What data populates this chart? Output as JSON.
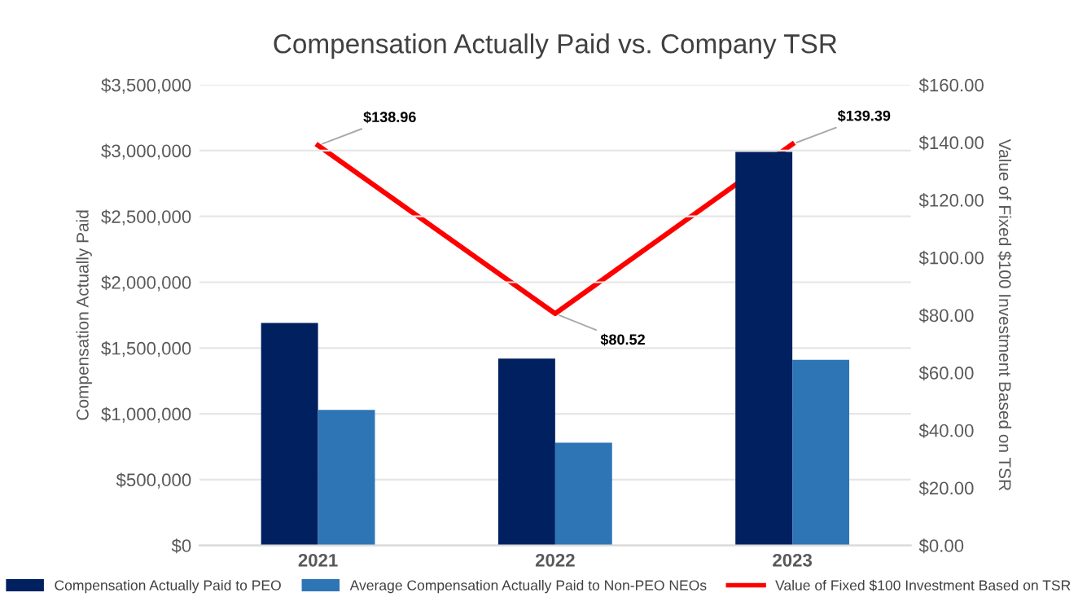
{
  "chart_data": {
    "type": "bar",
    "title": "Compensation Actually Paid vs. Company TSR",
    "ylabel": "Compensation Actually Paid",
    "y2label": "Value of Fixed $100 Investment Based on TSR",
    "categories": [
      "2021",
      "2022",
      "2023"
    ],
    "series": [
      {
        "name": "Compensation Actually Paid to PEO",
        "color": "#002060",
        "values": [
          1690000,
          1420000,
          2990000
        ]
      },
      {
        "name": "Average Compensation Actually Paid to Non-PEO NEOs",
        "color": "#2e75b6",
        "values": [
          1030000,
          780000,
          1410000
        ]
      },
      {
        "name": "Value of Fixed $100 Investment Based on TSR",
        "type": "line",
        "axis": "y2",
        "color": "#ff0000",
        "values": [
          138.96,
          80.52,
          139.39
        ],
        "value_labels": [
          "$138.96",
          "$80.52",
          "$139.39"
        ]
      }
    ],
    "ylim": [
      0,
      3500000
    ],
    "yticks": [
      {
        "value": 0,
        "label": "$0"
      },
      {
        "value": 500000,
        "label": "$500,000"
      },
      {
        "value": 1000000,
        "label": "$1,000,000"
      },
      {
        "value": 1500000,
        "label": "$1,500,000"
      },
      {
        "value": 2000000,
        "label": "$2,000,000"
      },
      {
        "value": 2500000,
        "label": "$2,500,000"
      },
      {
        "value": 3000000,
        "label": "$3,000,000"
      },
      {
        "value": 3500000,
        "label": "$3,500,000"
      }
    ],
    "y2lim": [
      0,
      160
    ],
    "y2ticks": [
      {
        "value": 0,
        "label": "$0.00"
      },
      {
        "value": 20,
        "label": "$20.00"
      },
      {
        "value": 40,
        "label": "$40.00"
      },
      {
        "value": 60,
        "label": "$60.00"
      },
      {
        "value": 80,
        "label": "$80.00"
      },
      {
        "value": 100,
        "label": "$100.00"
      },
      {
        "value": 120,
        "label": "$120.00"
      },
      {
        "value": 140,
        "label": "$140.00"
      },
      {
        "value": 160,
        "label": "$160.00"
      }
    ],
    "grid": "y",
    "legend": "bottom"
  }
}
